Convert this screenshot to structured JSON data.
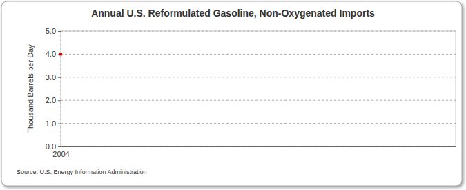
{
  "chart_data": {
    "type": "line",
    "title": "Annual U.S. Reformulated Gasoline, Non-Oxygenated Imports",
    "y_label": "Thousand Barrels per Day",
    "source": "Source: U.S. Energy Information Administration",
    "categories": [
      "2004"
    ],
    "values": [
      4.0
    ],
    "color": "#cc0000",
    "marker": "square",
    "ylim": [
      0,
      5
    ],
    "yticks": [
      {
        "value": 0,
        "label": "0.0"
      },
      {
        "value": 1,
        "label": "1.0"
      },
      {
        "value": 2,
        "label": "2.0"
      },
      {
        "value": 3,
        "label": "3.0"
      },
      {
        "value": 4,
        "label": "4.0"
      },
      {
        "value": 5,
        "label": "5.0"
      }
    ],
    "grid": true
  }
}
